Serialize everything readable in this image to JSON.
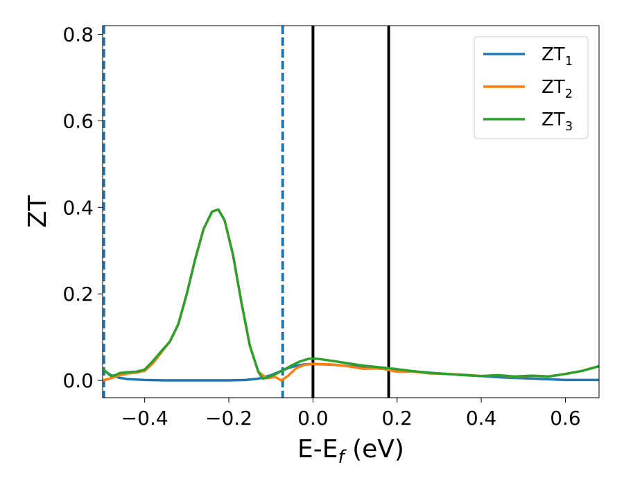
{
  "chart_data": {
    "type": "line",
    "xlabel": "E-E",
    "xlabel_sub": "f",
    "xlabel_unit": " (eV)",
    "ylabel": "ZT",
    "xlim": [
      -0.5,
      0.68
    ],
    "ylim": [
      -0.04,
      0.82
    ],
    "x_ticks": [
      {
        "value": -0.4,
        "label": "−0.4"
      },
      {
        "value": -0.2,
        "label": "−0.2"
      },
      {
        "value": 0.0,
        "label": "0.0"
      },
      {
        "value": 0.2,
        "label": "0.2"
      },
      {
        "value": 0.4,
        "label": "0.4"
      },
      {
        "value": 0.6,
        "label": "0.6"
      }
    ],
    "y_ticks": [
      {
        "value": 0.0,
        "label": "0.0"
      },
      {
        "value": 0.2,
        "label": "0.2"
      },
      {
        "value": 0.4,
        "label": "0.4"
      },
      {
        "value": 0.6,
        "label": "0.6"
      },
      {
        "value": 0.8,
        "label": "0.8"
      }
    ],
    "grid": false,
    "legend_position": "top-right",
    "series": [
      {
        "name": "ZT",
        "name_sub": "1",
        "color": "#1f77b4",
        "points": [
          [
            -0.5,
            0.025
          ],
          [
            -0.48,
            0.012
          ],
          [
            -0.46,
            0.006
          ],
          [
            -0.44,
            0.003
          ],
          [
            -0.42,
            0.002
          ],
          [
            -0.4,
            0.001
          ],
          [
            -0.35,
            0.0
          ],
          [
            -0.3,
            0.0
          ],
          [
            -0.25,
            0.0
          ],
          [
            -0.2,
            0.0
          ],
          [
            -0.16,
            0.001
          ],
          [
            -0.13,
            0.004
          ],
          [
            -0.1,
            0.012
          ],
          [
            -0.08,
            0.02
          ],
          [
            -0.06,
            0.028
          ],
          [
            -0.04,
            0.034
          ],
          [
            -0.02,
            0.037
          ],
          [
            0.0,
            0.038
          ],
          [
            0.05,
            0.036
          ],
          [
            0.1,
            0.032
          ],
          [
            0.15,
            0.028
          ],
          [
            0.2,
            0.024
          ],
          [
            0.25,
            0.02
          ],
          [
            0.3,
            0.016
          ],
          [
            0.35,
            0.013
          ],
          [
            0.4,
            0.01
          ],
          [
            0.45,
            0.007
          ],
          [
            0.5,
            0.005
          ],
          [
            0.55,
            0.003
          ],
          [
            0.6,
            0.001
          ],
          [
            0.65,
            0.001
          ],
          [
            0.68,
            0.001
          ]
        ]
      },
      {
        "name": "ZT",
        "name_sub": "2",
        "color": "#ff7f0e",
        "points": [
          [
            -0.5,
            0.0
          ],
          [
            -0.48,
            0.005
          ],
          [
            -0.46,
            0.012
          ],
          [
            -0.44,
            0.016
          ],
          [
            -0.42,
            0.018
          ],
          [
            -0.4,
            0.022
          ],
          [
            -0.38,
            0.04
          ],
          [
            -0.36,
            0.065
          ],
          [
            -0.34,
            0.09
          ],
          [
            -0.32,
            0.13
          ],
          [
            -0.3,
            0.2
          ],
          [
            -0.28,
            0.28
          ],
          [
            -0.26,
            0.35
          ],
          [
            -0.24,
            0.39
          ],
          [
            -0.225,
            0.395
          ],
          [
            -0.21,
            0.37
          ],
          [
            -0.19,
            0.29
          ],
          [
            -0.17,
            0.18
          ],
          [
            -0.15,
            0.08
          ],
          [
            -0.13,
            0.02
          ],
          [
            -0.11,
            0.005
          ],
          [
            -0.09,
            0.008
          ],
          [
            -0.075,
            0.0
          ],
          [
            -0.06,
            0.01
          ],
          [
            -0.04,
            0.028
          ],
          [
            -0.02,
            0.036
          ],
          [
            0.0,
            0.038
          ],
          [
            0.04,
            0.037
          ],
          [
            0.08,
            0.033
          ],
          [
            0.12,
            0.027
          ],
          [
            0.16,
            0.028
          ],
          [
            0.2,
            0.02
          ],
          [
            0.24,
            0.02
          ],
          [
            0.28,
            0.016
          ],
          [
            0.32,
            0.015
          ],
          [
            0.36,
            0.013
          ],
          [
            0.4,
            0.01
          ],
          [
            0.44,
            0.012
          ],
          [
            0.48,
            0.008
          ],
          [
            0.52,
            0.011
          ],
          [
            0.56,
            0.009
          ],
          [
            0.6,
            0.015
          ],
          [
            0.64,
            0.022
          ],
          [
            0.68,
            0.033
          ]
        ]
      },
      {
        "name": "ZT",
        "name_sub": "3",
        "color": "#2ca02c",
        "points": [
          [
            -0.5,
            0.028
          ],
          [
            -0.49,
            0.018
          ],
          [
            -0.48,
            0.01
          ],
          [
            -0.47,
            0.012
          ],
          [
            -0.46,
            0.017
          ],
          [
            -0.44,
            0.019
          ],
          [
            -0.42,
            0.02
          ],
          [
            -0.4,
            0.025
          ],
          [
            -0.38,
            0.045
          ],
          [
            -0.36,
            0.068
          ],
          [
            -0.34,
            0.09
          ],
          [
            -0.32,
            0.13
          ],
          [
            -0.3,
            0.2
          ],
          [
            -0.28,
            0.28
          ],
          [
            -0.26,
            0.35
          ],
          [
            -0.24,
            0.39
          ],
          [
            -0.225,
            0.395
          ],
          [
            -0.21,
            0.37
          ],
          [
            -0.19,
            0.29
          ],
          [
            -0.17,
            0.18
          ],
          [
            -0.15,
            0.08
          ],
          [
            -0.13,
            0.02
          ],
          [
            -0.12,
            0.004
          ],
          [
            -0.11,
            0.006
          ],
          [
            -0.09,
            0.014
          ],
          [
            -0.07,
            0.024
          ],
          [
            -0.05,
            0.035
          ],
          [
            -0.03,
            0.044
          ],
          [
            -0.01,
            0.05
          ],
          [
            0.01,
            0.05
          ],
          [
            0.04,
            0.046
          ],
          [
            0.08,
            0.04
          ],
          [
            0.12,
            0.034
          ],
          [
            0.16,
            0.03
          ],
          [
            0.2,
            0.026
          ],
          [
            0.24,
            0.021
          ],
          [
            0.28,
            0.017
          ],
          [
            0.32,
            0.015
          ],
          [
            0.36,
            0.012
          ],
          [
            0.4,
            0.01
          ],
          [
            0.44,
            0.012
          ],
          [
            0.48,
            0.009
          ],
          [
            0.52,
            0.011
          ],
          [
            0.56,
            0.009
          ],
          [
            0.6,
            0.015
          ],
          [
            0.64,
            0.022
          ],
          [
            0.68,
            0.033
          ]
        ]
      }
    ],
    "vertical_lines": [
      {
        "x": -0.497,
        "style": "dashed",
        "color": "#1f77b4"
      },
      {
        "x": -0.072,
        "style": "dashed",
        "color": "#1f77b4"
      },
      {
        "x": 0.0,
        "style": "solid",
        "color": "#000000"
      },
      {
        "x": 0.18,
        "style": "solid",
        "color": "#000000"
      }
    ]
  }
}
